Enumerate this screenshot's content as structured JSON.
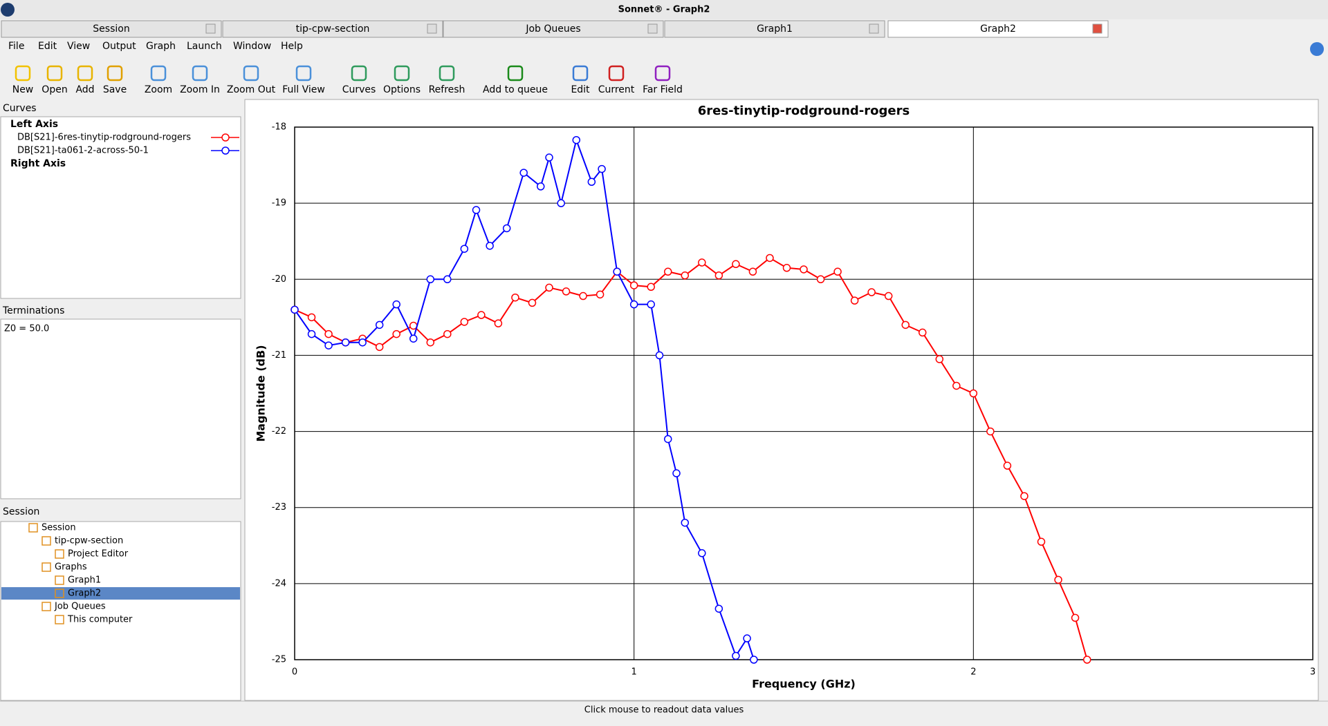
{
  "window_title": "Sonnet® - Graph2",
  "tabs": [
    "Session",
    "tip-cpw-section",
    "Job Queues",
    "Graph1",
    "Graph2"
  ],
  "menu": [
    "File",
    "Edit",
    "View",
    "Output",
    "Graph",
    "Launch",
    "Window",
    "Help"
  ],
  "toolbar": [
    "New",
    "Open",
    "Add",
    "Save",
    "Zoom",
    "Zoom In",
    "Zoom Out",
    "Full View",
    "Curves",
    "Options",
    "Refresh",
    "Add to queue",
    "Edit",
    "Current",
    "Far Field"
  ],
  "curves_panel": {
    "title": "Curves",
    "groups": [
      "Left Axis",
      "Right Axis"
    ]
  },
  "terminations_panel": {
    "title": "Terminations",
    "text": "Z0 = 50.0"
  },
  "session_panel": {
    "title": "Session",
    "tree": [
      "Session",
      "tip-cpw-section",
      "Project Editor",
      "Graphs",
      "Graph1",
      "Graph2",
      "Job Queues",
      "This computer"
    ]
  },
  "status": "Click mouse to readout data values",
  "chart_data": {
    "type": "line",
    "title": "6res-tinytip-rodground-rogers",
    "x_label": "Frequency (GHz)",
    "y_label": "Magnitude (dB)",
    "xlim": [
      0,
      3
    ],
    "xticks": [
      0,
      1,
      2,
      3
    ],
    "ylim": [
      -25,
      -18
    ],
    "yticks": [
      -18,
      -19,
      -20,
      -21,
      -22,
      -23,
      -24,
      -25
    ],
    "grid": true,
    "series": [
      {
        "name": "DB[S21]-6res-tinytip-rodground-rogers",
        "color": "#ff0000",
        "x": [
          0,
          0.05,
          0.1,
          0.15,
          0.2,
          0.25,
          0.3,
          0.35,
          0.4,
          0.45,
          0.5,
          0.55,
          0.6,
          0.65,
          0.7,
          0.75,
          0.8,
          0.85,
          0.9,
          0.95,
          1.0,
          1.05,
          1.1,
          1.15,
          1.2,
          1.25,
          1.3,
          1.35,
          1.4,
          1.45,
          1.5,
          1.55,
          1.6,
          1.65,
          1.7,
          1.75,
          1.8,
          1.85,
          1.9,
          1.95,
          2.0,
          2.05,
          2.1,
          2.15,
          2.2,
          2.25,
          2.3,
          2.335
        ],
        "values": [
          -20.4,
          -20.5,
          -20.72,
          -20.83,
          -20.78,
          -20.89,
          -20.72,
          -20.61,
          -20.83,
          -20.72,
          -20.56,
          -20.47,
          -20.58,
          -20.24,
          -20.31,
          -20.11,
          -20.16,
          -20.22,
          -20.2,
          -19.9,
          -20.08,
          -20.1,
          -19.9,
          -19.95,
          -19.78,
          -19.95,
          -19.8,
          -19.9,
          -19.72,
          -19.85,
          -19.87,
          -20.0,
          -19.9,
          -20.28,
          -20.17,
          -20.22,
          -20.6,
          -20.7,
          -21.05,
          -21.4,
          -21.5,
          -22.0,
          -22.45,
          -22.85,
          -23.45,
          -23.95,
          -24.45,
          -25.0
        ]
      },
      {
        "name": "DB[S21]-ta061-2-across-50-1",
        "color": "#0000ff",
        "x": [
          0,
          0.05,
          0.1,
          0.15,
          0.2,
          0.25,
          0.3,
          0.35,
          0.4,
          0.45,
          0.5,
          0.535,
          0.575,
          0.625,
          0.675,
          0.725,
          0.75,
          0.785,
          0.83,
          0.875,
          0.905,
          0.95,
          1.0,
          1.05,
          1.075,
          1.1,
          1.125,
          1.15,
          1.2,
          1.25,
          1.3,
          1.333,
          1.353
        ],
        "values": [
          -20.4,
          -20.72,
          -20.87,
          -20.83,
          -20.83,
          -20.6,
          -20.33,
          -20.78,
          -20.0,
          -20.0,
          -19.6,
          -19.09,
          -19.56,
          -19.33,
          -18.6,
          -18.78,
          -18.4,
          -19.0,
          -18.17,
          -18.72,
          -18.55,
          -19.9,
          -20.33,
          -20.33,
          -21.0,
          -22.1,
          -22.55,
          -23.2,
          -23.6,
          -24.33,
          -24.95,
          -24.72,
          -25.0
        ]
      }
    ]
  }
}
